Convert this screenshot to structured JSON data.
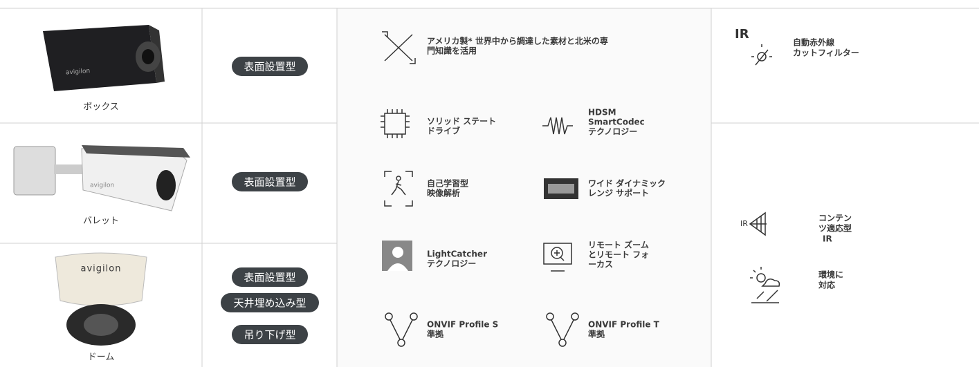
{
  "products": [
    {
      "name": "ボックス",
      "logo": "avigilon",
      "mounts": [
        "表面設置型"
      ]
    },
    {
      "name": "バレット",
      "logo": "avigilon",
      "mounts": [
        "表面設置型"
      ]
    },
    {
      "name": "ドーム",
      "logo": "avigilon",
      "mounts": [
        "表面設置型",
        "天井埋め込み型",
        "吊り下げ型"
      ]
    }
  ],
  "features": [
    {
      "lines": [
        "アメリカ製* 世界中から調達した素材と北米の専",
        "門知識を活用"
      ]
    },
    {
      "lines": [
        "ソリッド ステート",
        "ドライブ"
      ]
    },
    {
      "lines": [
        "HDSM",
        "SmartCodec",
        "テクノロジー"
      ]
    },
    {
      "lines": [
        "自己学習型",
        "映像解析"
      ]
    },
    {
      "lines": [
        "ワイド ダイナミック",
        "レンジ サポート"
      ]
    },
    {
      "lines": [
        "LightCatcher",
        "テクノロジー"
      ]
    },
    {
      "lines": [
        "リモート ズーム",
        "とリモート フォ",
        "ーカス"
      ]
    },
    {
      "lines": [
        "ONVIF Profile S",
        "準拠"
      ]
    },
    {
      "lines": [
        "ONVIF Profile T",
        "準拠"
      ]
    }
  ],
  "environment": [
    {
      "icon_label": "IR",
      "lines": [
        "自動赤外線",
        "カットフィルター"
      ]
    },
    {
      "icon_label": "IR",
      "lines": [
        "コンテン",
        "ツ適応型",
        "IR"
      ]
    },
    {
      "lines": [
        "環境に",
        "対応"
      ]
    }
  ]
}
